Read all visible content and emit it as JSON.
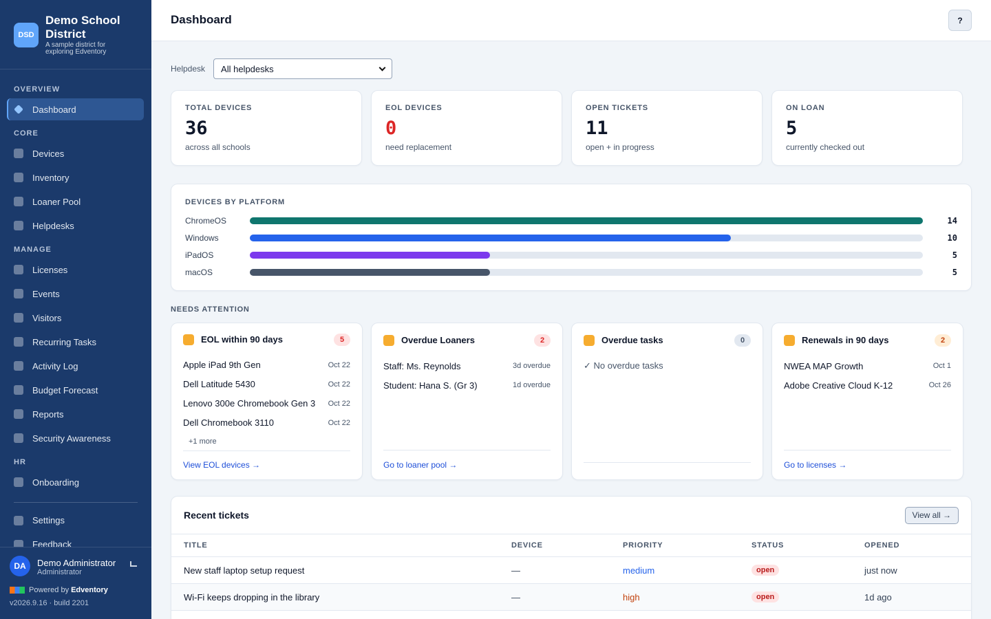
{
  "sidebar": {
    "logo": "DSD",
    "org_name": "Demo School District",
    "org_tagline": "A sample district for exploring Edventory",
    "sections": [
      {
        "heading": "OVERVIEW",
        "items": [
          "Dashboard"
        ]
      },
      {
        "heading": "CORE",
        "items": [
          "Devices",
          "Inventory",
          "Loaner Pool",
          "Helpdesks"
        ]
      },
      {
        "heading": "MANAGE",
        "items": [
          "Licenses",
          "Events",
          "Visitors",
          "Recurring Tasks",
          "Activity Log",
          "Budget Forecast",
          "Reports",
          "Security Awareness"
        ]
      },
      {
        "heading": "HR",
        "items": [
          "Onboarding"
        ]
      }
    ],
    "active_item": "Dashboard",
    "bottom_items": [
      "Settings",
      "Feedback"
    ],
    "user": {
      "initials": "DA",
      "name": "Demo Administrator",
      "role": "Administrator"
    },
    "powered_by": "Powered by",
    "brand": "Edventory",
    "version": "v2026.9.16 · build 2201"
  },
  "header": {
    "title": "Dashboard",
    "help": "?"
  },
  "filter": {
    "label": "Helpdesk",
    "selected": "All helpdesks"
  },
  "stats": [
    {
      "label": "TOTAL DEVICES",
      "value": 36,
      "note": "across all schools"
    },
    {
      "label": "EOL DEVICES",
      "value": 0,
      "note": "need replacement",
      "color": "#dc2626"
    },
    {
      "label": "OPEN TICKETS",
      "value": 11,
      "note": "open + in progress"
    },
    {
      "label": "ON LOAN",
      "value": 5,
      "note": "currently checked out"
    }
  ],
  "chart_data": {
    "type": "bar",
    "orientation": "horizontal",
    "title": "DEVICES BY PLATFORM",
    "categories": [
      "ChromeOS",
      "Windows",
      "iPadOS",
      "macOS"
    ],
    "values": [
      14,
      10,
      5,
      5
    ],
    "colors": [
      "#0f766e",
      "#2563eb",
      "#7c3aed",
      "#475569"
    ]
  },
  "attention": {
    "heading": "NEEDS ATTENTION",
    "cards": [
      {
        "title": "EOL within 90 days",
        "count": 5,
        "badge_bg": "#fee2e2",
        "badge_color": "#dc2626",
        "items": [
          {
            "name": "Apple iPad 9th Gen",
            "meta": "Oct 22"
          },
          {
            "name": "Dell Latitude 5430",
            "meta": "Oct 22"
          },
          {
            "name": "Lenovo 300e Chromebook Gen 3",
            "meta": "Oct 22"
          },
          {
            "name": "Dell Chromebook 3110",
            "meta": "Oct 22"
          }
        ],
        "more": "+1 more",
        "link": "View EOL devices →"
      },
      {
        "title": "Overdue Loaners",
        "count": 2,
        "badge_bg": "#fee2e2",
        "badge_color": "#dc2626",
        "items": [
          {
            "name": "Staff: Ms. Reynolds",
            "meta": "3d overdue"
          },
          {
            "name": "Student: Hana S. (Gr 3)",
            "meta": "1d overdue"
          }
        ],
        "link": "Go to loaner pool →"
      },
      {
        "title": "Overdue tasks",
        "count": 0,
        "badge_bg": "#e2e8f0",
        "badge_color": "#475569",
        "empty": "✓ No overdue tasks"
      },
      {
        "title": "Renewals in 90 days",
        "count": 2,
        "badge_bg": "#ffedd5",
        "badge_color": "#c2410c",
        "items": [
          {
            "name": "NWEA MAP Growth",
            "meta": "Oct 1"
          },
          {
            "name": "Adobe Creative Cloud K-12",
            "meta": "Oct 26"
          }
        ],
        "link": "Go to licenses →"
      }
    ]
  },
  "tickets": {
    "title": "Recent tickets",
    "view_all": "View all →",
    "columns": [
      "TITLE",
      "DEVICE",
      "PRIORITY",
      "STATUS",
      "OPENED"
    ],
    "rows": [
      [
        "New staff laptop setup request",
        "—",
        "medium",
        "open",
        "just now"
      ],
      [
        "Wi-Fi keeps dropping in the library",
        "—",
        "high",
        "open",
        "1d ago"
      ]
    ]
  }
}
